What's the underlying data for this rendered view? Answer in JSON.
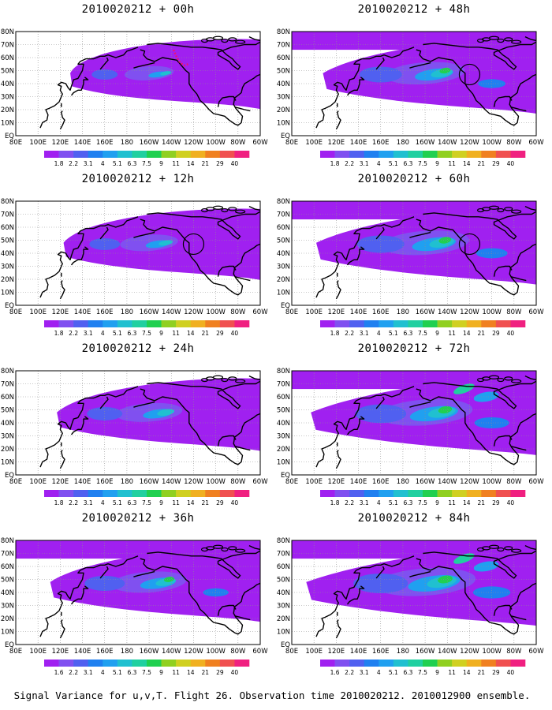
{
  "caption": "Signal Variance for u,v,T. Flight 26. Observation time 2010020212. 2010012900 ensemble.",
  "colors": {
    "scale": [
      "#a020f0",
      "#8050f0",
      "#5060f0",
      "#2080f0",
      "#20a0f0",
      "#20c0d0",
      "#20d0a0",
      "#20d050",
      "#90d020",
      "#d0d020",
      "#f0b020",
      "#f08020",
      "#f05050",
      "#f02080"
    ],
    "coast": "#000000",
    "grid": "#909090",
    "track": "#f01070"
  },
  "chart_data": [
    {
      "type": "map",
      "title": "2010020212 + 00h",
      "x_labels": [
        "80E",
        "100E",
        "120E",
        "140E",
        "160E",
        "180",
        "160W",
        "140W",
        "120W",
        "100W",
        "80W",
        "60W"
      ],
      "y_labels": [
        "80N",
        "70N",
        "60N",
        "50N",
        "40N",
        "30N",
        "20N",
        "10N",
        "EQ"
      ],
      "colorbar": {
        "labels": [
          "1.8",
          "2.2",
          "3.1",
          "4",
          "5.1",
          "6.3",
          "7.5",
          "9",
          "11",
          "14",
          "21",
          "29",
          "40"
        ]
      },
      "track": true,
      "circle": false,
      "level": 0.35
    },
    {
      "type": "map",
      "title": "2010020212 + 48h",
      "x_labels": [
        "80E",
        "100E",
        "120E",
        "140E",
        "160E",
        "180",
        "160W",
        "140W",
        "120W",
        "100W",
        "80W",
        "60W"
      ],
      "y_labels": [
        "80N",
        "70N",
        "60N",
        "50N",
        "40N",
        "30N",
        "20N",
        "10N",
        "EQ"
      ],
      "colorbar": {
        "labels": [
          "1.8",
          "2.2",
          "3.1",
          "4",
          "5.1",
          "6.3",
          "7.5",
          "9",
          "11",
          "14",
          "21",
          "29",
          "40"
        ]
      },
      "track": false,
      "circle": true,
      "level": 0.7
    },
    {
      "type": "map",
      "title": "2010020212 + 12h",
      "x_labels": [
        "80E",
        "100E",
        "120E",
        "140E",
        "160E",
        "180",
        "160W",
        "140W",
        "120W",
        "100W",
        "80W",
        "60W"
      ],
      "y_labels": [
        "80N",
        "70N",
        "60N",
        "50N",
        "40N",
        "30N",
        "20N",
        "10N",
        "EQ"
      ],
      "colorbar": {
        "labels": [
          "1.8",
          "2.2",
          "3.1",
          "4",
          "5.1",
          "6.3",
          "7.5",
          "9",
          "11",
          "14",
          "21",
          "29",
          "40"
        ]
      },
      "track": false,
      "circle": true,
      "level": 0.45
    },
    {
      "type": "map",
      "title": "2010020212 + 60h",
      "x_labels": [
        "80E",
        "100E",
        "120E",
        "140E",
        "160E",
        "180",
        "160W",
        "140W",
        "120W",
        "100W",
        "80W",
        "60W"
      ],
      "y_labels": [
        "80N",
        "70N",
        "60N",
        "50N",
        "40N",
        "30N",
        "20N",
        "10N",
        "EQ"
      ],
      "colorbar": {
        "labels": [
          "1.8",
          "2.2",
          "3.1",
          "4",
          "5.1",
          "6.3",
          "7.5",
          "9",
          "11",
          "14",
          "21",
          "29",
          "40"
        ]
      },
      "track": false,
      "circle": true,
      "level": 0.8
    },
    {
      "type": "map",
      "title": "2010020212 + 24h",
      "x_labels": [
        "80E",
        "100E",
        "120E",
        "140E",
        "160E",
        "180",
        "160W",
        "140W",
        "120W",
        "100W",
        "80W",
        "60W"
      ],
      "y_labels": [
        "80N",
        "70N",
        "60N",
        "50N",
        "40N",
        "30N",
        "20N",
        "10N",
        "EQ"
      ],
      "colorbar": {
        "labels": [
          "1.8",
          "2.2",
          "3.1",
          "4",
          "5.1",
          "6.3",
          "7.5",
          "9",
          "11",
          "14",
          "21",
          "29",
          "40"
        ]
      },
      "track": false,
      "circle": false,
      "level": 0.55
    },
    {
      "type": "map",
      "title": "2010020212 + 72h",
      "x_labels": [
        "80E",
        "100E",
        "120E",
        "140E",
        "160E",
        "180",
        "160W",
        "140W",
        "120W",
        "100W",
        "80W",
        "60W"
      ],
      "y_labels": [
        "80N",
        "70N",
        "60N",
        "50N",
        "40N",
        "30N",
        "20N",
        "10N",
        "EQ"
      ],
      "colorbar": {
        "labels": [
          "1.8",
          "2.2",
          "3.1",
          "4",
          "5.1",
          "6.3",
          "7.5",
          "9",
          "11",
          "14",
          "21",
          "29",
          "40"
        ]
      },
      "track": false,
      "circle": false,
      "level": 0.88
    },
    {
      "type": "map",
      "title": "2010020212 + 36h",
      "x_labels": [
        "80E",
        "100E",
        "120E",
        "140E",
        "160E",
        "180",
        "160W",
        "140W",
        "120W",
        "100W",
        "80W",
        "60W"
      ],
      "y_labels": [
        "80N",
        "70N",
        "60N",
        "50N",
        "40N",
        "30N",
        "20N",
        "10N",
        "EQ"
      ],
      "colorbar": {
        "labels": [
          "1.6",
          "2.2",
          "3.1",
          "4",
          "5.1",
          "6.3",
          "7.5",
          "9",
          "11",
          "14",
          "21",
          "29",
          "40"
        ]
      },
      "track": false,
      "circle": false,
      "level": 0.65
    },
    {
      "type": "map",
      "title": "2010020212 + 84h",
      "x_labels": [
        "80E",
        "100E",
        "120E",
        "140E",
        "160E",
        "180",
        "160W",
        "140W",
        "120W",
        "100W",
        "80W",
        "60W"
      ],
      "y_labels": [
        "80N",
        "70N",
        "60N",
        "50N",
        "40N",
        "30N",
        "20N",
        "10N",
        "EQ"
      ],
      "colorbar": {
        "labels": [
          "1.6",
          "2.2",
          "3.1",
          "4",
          "5.1",
          "6.3",
          "7.5",
          "9",
          "11",
          "14",
          "21",
          "29",
          "40"
        ]
      },
      "track": false,
      "circle": false,
      "level": 0.95
    }
  ]
}
